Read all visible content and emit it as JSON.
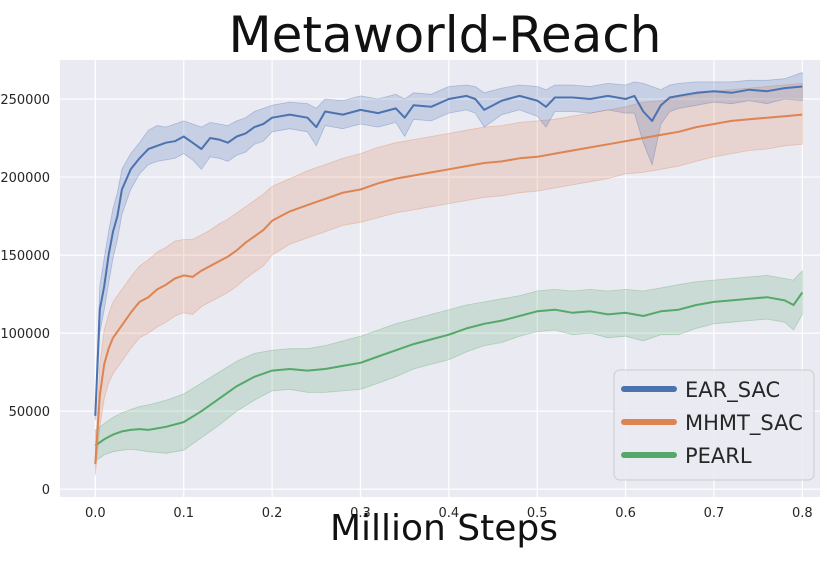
{
  "chart_data": {
    "type": "line",
    "title": "Metaworld-Reach",
    "xlabel": "Million Steps",
    "ylabel": "",
    "xlim": [
      -0.04,
      0.82
    ],
    "ylim": [
      -5000,
      275000
    ],
    "xticks": [
      0.0,
      0.1,
      0.2,
      0.3,
      0.4,
      0.5,
      0.6,
      0.7,
      0.8
    ],
    "xtick_labels": [
      "0.0",
      "0.1",
      "0.2",
      "0.3",
      "0.4",
      "0.5",
      "0.6",
      "0.7",
      "0.8"
    ],
    "yticks": [
      0,
      50000,
      100000,
      150000,
      200000,
      250000
    ],
    "ytick_labels": [
      "0",
      "50000",
      "100000",
      "150000",
      "200000",
      "250000"
    ],
    "grid": true,
    "background": "#eaeaf2",
    "legend_position": "bottom-right",
    "series": [
      {
        "name": "EAR_SAC",
        "color": "#4c72b0",
        "x": [
          0.0,
          0.005,
          0.01,
          0.015,
          0.02,
          0.025,
          0.03,
          0.04,
          0.05,
          0.06,
          0.07,
          0.08,
          0.09,
          0.1,
          0.11,
          0.12,
          0.13,
          0.14,
          0.15,
          0.16,
          0.17,
          0.18,
          0.19,
          0.2,
          0.22,
          0.24,
          0.25,
          0.26,
          0.28,
          0.3,
          0.32,
          0.34,
          0.35,
          0.36,
          0.38,
          0.4,
          0.42,
          0.43,
          0.44,
          0.46,
          0.48,
          0.5,
          0.51,
          0.52,
          0.54,
          0.56,
          0.58,
          0.6,
          0.61,
          0.62,
          0.63,
          0.64,
          0.65,
          0.66,
          0.68,
          0.7,
          0.72,
          0.74,
          0.76,
          0.78,
          0.8
        ],
        "y": [
          47000,
          115000,
          130000,
          150000,
          165000,
          175000,
          192000,
          205000,
          212000,
          218000,
          220000,
          222000,
          223000,
          226000,
          222000,
          218000,
          225000,
          224000,
          222000,
          226000,
          228000,
          232000,
          234000,
          238000,
          240000,
          238000,
          232000,
          242000,
          240000,
          243000,
          241000,
          244000,
          238000,
          246000,
          245000,
          250000,
          252000,
          250000,
          243000,
          249000,
          252000,
          249000,
          245000,
          251000,
          251000,
          250000,
          252000,
          250000,
          252000,
          242000,
          236000,
          246000,
          251000,
          252000,
          254000,
          255000,
          254000,
          256000,
          255000,
          257000,
          258000
        ],
        "upper": [
          50000,
          130000,
          148000,
          165000,
          180000,
          190000,
          205000,
          215000,
          222000,
          230000,
          233000,
          232000,
          234000,
          236000,
          234000,
          232000,
          235000,
          234000,
          233000,
          236000,
          238000,
          242000,
          244000,
          246000,
          248000,
          247000,
          244000,
          250000,
          249000,
          252000,
          250000,
          253000,
          250000,
          254000,
          253000,
          258000,
          259000,
          258000,
          254000,
          257000,
          259000,
          258000,
          256000,
          259000,
          259000,
          258000,
          260000,
          259000,
          261000,
          260000,
          258000,
          256000,
          259000,
          260000,
          261000,
          261000,
          261000,
          262000,
          262000,
          263000,
          267000
        ],
        "lower": [
          44000,
          100000,
          115000,
          132000,
          148000,
          160000,
          176000,
          192000,
          202000,
          208000,
          210000,
          211000,
          212000,
          215000,
          211000,
          205000,
          213000,
          212000,
          210000,
          214000,
          216000,
          221000,
          223000,
          229000,
          231000,
          229000,
          220000,
          233000,
          231000,
          234000,
          232000,
          235000,
          226000,
          237000,
          236000,
          241000,
          243000,
          241000,
          232000,
          240000,
          243000,
          239000,
          232000,
          242000,
          242000,
          241000,
          243000,
          241000,
          241000,
          222000,
          208000,
          234000,
          242000,
          244000,
          246000,
          248000,
          247000,
          249000,
          247000,
          250000,
          249000
        ]
      },
      {
        "name": "MHMT_SAC",
        "color": "#dd8452",
        "x": [
          0.0,
          0.005,
          0.01,
          0.015,
          0.02,
          0.03,
          0.04,
          0.05,
          0.06,
          0.07,
          0.08,
          0.09,
          0.1,
          0.11,
          0.12,
          0.13,
          0.14,
          0.15,
          0.16,
          0.17,
          0.18,
          0.19,
          0.2,
          0.22,
          0.24,
          0.26,
          0.28,
          0.3,
          0.32,
          0.34,
          0.36,
          0.38,
          0.4,
          0.42,
          0.44,
          0.46,
          0.48,
          0.5,
          0.52,
          0.54,
          0.56,
          0.58,
          0.6,
          0.62,
          0.64,
          0.66,
          0.68,
          0.7,
          0.72,
          0.74,
          0.76,
          0.78,
          0.8
        ],
        "y": [
          16000,
          60000,
          80000,
          90000,
          97000,
          105000,
          113000,
          120000,
          123000,
          128000,
          131000,
          135000,
          137000,
          136000,
          140000,
          143000,
          146000,
          149000,
          153000,
          158000,
          162000,
          166000,
          172000,
          178000,
          182000,
          186000,
          190000,
          192000,
          196000,
          199000,
          201000,
          203000,
          205000,
          207000,
          209000,
          210000,
          212000,
          213000,
          215000,
          217000,
          219000,
          221000,
          223000,
          225000,
          227000,
          229000,
          232000,
          234000,
          236000,
          237000,
          238000,
          239000,
          240000
        ],
        "upper": [
          20000,
          80000,
          102000,
          112000,
          120000,
          128000,
          136000,
          143000,
          147000,
          152000,
          155000,
          159000,
          160000,
          160000,
          163000,
          166000,
          170000,
          173000,
          177000,
          181000,
          185000,
          189000,
          194000,
          199000,
          204000,
          208000,
          212000,
          215000,
          219000,
          222000,
          224000,
          226000,
          228000,
          230000,
          232000,
          233000,
          235000,
          236000,
          237000,
          239000,
          241000,
          243000,
          245000,
          248000,
          249000,
          251000,
          253000,
          255000,
          256000,
          257000,
          258000,
          259000,
          260000
        ],
        "lower": [
          9000,
          40000,
          58000,
          68000,
          74000,
          82000,
          90000,
          97000,
          100000,
          104000,
          107000,
          111000,
          113000,
          112000,
          117000,
          120000,
          123000,
          126000,
          130000,
          135000,
          139000,
          143000,
          150000,
          157000,
          161000,
          165000,
          169000,
          171000,
          174000,
          177000,
          179000,
          181000,
          183000,
          185000,
          187000,
          188000,
          190000,
          191000,
          193000,
          195000,
          197000,
          199000,
          202000,
          203000,
          205000,
          207000,
          210000,
          213000,
          215000,
          217000,
          218000,
          220000,
          221000
        ]
      },
      {
        "name": "PEARL",
        "color": "#55a868",
        "x": [
          0.0,
          0.01,
          0.02,
          0.03,
          0.04,
          0.05,
          0.06,
          0.08,
          0.1,
          0.12,
          0.14,
          0.16,
          0.18,
          0.2,
          0.22,
          0.24,
          0.26,
          0.28,
          0.3,
          0.32,
          0.34,
          0.36,
          0.38,
          0.4,
          0.42,
          0.44,
          0.46,
          0.48,
          0.5,
          0.52,
          0.54,
          0.56,
          0.58,
          0.6,
          0.62,
          0.64,
          0.66,
          0.68,
          0.7,
          0.72,
          0.74,
          0.76,
          0.78,
          0.79,
          0.8
        ],
        "y": [
          28000,
          32000,
          35000,
          37000,
          38000,
          38500,
          38000,
          40000,
          43000,
          50000,
          58000,
          66000,
          72000,
          76000,
          77000,
          76000,
          77000,
          79000,
          81000,
          85000,
          89000,
          93000,
          96000,
          99000,
          103000,
          106000,
          108000,
          111000,
          114000,
          115000,
          113000,
          114000,
          112000,
          113000,
          111000,
          114000,
          115000,
          118000,
          120000,
          121000,
          122000,
          123000,
          121000,
          118000,
          126000
        ],
        "upper": [
          38000,
          42000,
          46000,
          49000,
          51000,
          53000,
          54000,
          57000,
          61000,
          68000,
          75000,
          82000,
          87000,
          89000,
          90000,
          90000,
          92000,
          95000,
          98000,
          102000,
          106000,
          109000,
          112000,
          115000,
          118000,
          120000,
          122000,
          124000,
          127000,
          128000,
          127000,
          128000,
          127000,
          128000,
          127000,
          129000,
          131000,
          133000,
          134000,
          135000,
          136000,
          137000,
          135000,
          134000,
          140000
        ],
        "lower": [
          18000,
          22000,
          24000,
          25000,
          25500,
          25000,
          24000,
          23000,
          25000,
          33000,
          41000,
          50000,
          57000,
          63000,
          64000,
          62000,
          62000,
          63000,
          64000,
          68000,
          72000,
          77000,
          80000,
          83000,
          88000,
          92000,
          94000,
          98000,
          101000,
          102000,
          99000,
          100000,
          97000,
          98000,
          95000,
          99000,
          99000,
          103000,
          106000,
          107000,
          108000,
          109000,
          107000,
          102000,
          112000
        ]
      }
    ]
  }
}
